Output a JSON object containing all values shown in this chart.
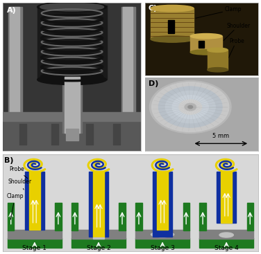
{
  "fig_width": 3.76,
  "fig_height": 3.67,
  "dpi": 100,
  "bg_color": "#ffffff",
  "panel_labels": [
    "A)",
    "B)",
    "C)",
    "D)"
  ],
  "panel_label_fontsize": 8,
  "panel_label_fontweight": "bold",
  "stage_labels": [
    "Stage 1",
    "Stage 2",
    "Stage 3",
    "Stage 4"
  ],
  "stage_label_fontsize": 6.5,
  "probe_label": "Probe",
  "shoulder_label": "Shoulder",
  "clamp_label": "Clamp",
  "annotation_labels_C": [
    "Clamp",
    "Shoulder",
    "Probe"
  ],
  "scale_bar_text": "5 mm",
  "color_yellow": "#e8d000",
  "color_blue_dark": "#1030a0",
  "color_green": "#1e7a20",
  "color_gray_plate": "#808080",
  "color_gray_light": "#c0c0c0",
  "color_white": "#ffffff",
  "color_black": "#000000",
  "color_panel_bg_B": "#d8d8d8",
  "stage_centers": [
    0.5,
    1.5,
    2.5,
    3.5
  ]
}
